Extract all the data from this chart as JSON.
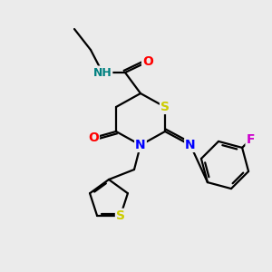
{
  "bg_color": "#ebebeb",
  "atom_colors": {
    "S": "#cccc00",
    "N": "#0000ff",
    "O": "#ff0000",
    "F": "#cc00cc",
    "H": "#008080",
    "C": "#000000"
  },
  "bond_color": "#000000",
  "bond_width": 1.6,
  "font_size": 10
}
